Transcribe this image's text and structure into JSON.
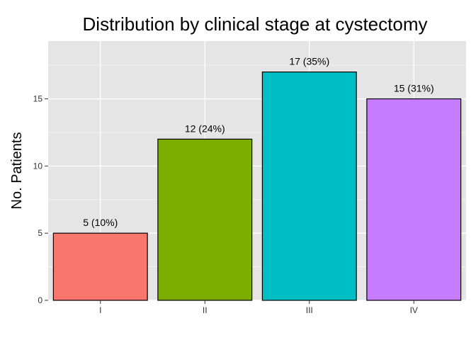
{
  "chart_data": {
    "type": "bar",
    "title": "Distribution by clinical stage at cystectomy",
    "xlabel": "",
    "ylabel": "No. Patients",
    "categories": [
      "I",
      "II",
      "III",
      "IV"
    ],
    "values": [
      5,
      12,
      17,
      15
    ],
    "data_labels": [
      "5 (10%)",
      "12 (24%)",
      "17 (35%)",
      "15 (31%)"
    ],
    "colors": [
      "#F8766D",
      "#7CAE00",
      "#00BFC4",
      "#C77CFF"
    ],
    "ylim": [
      0,
      19.3
    ],
    "yticks": [
      0,
      5,
      10,
      15
    ],
    "grid": true,
    "legend": "none",
    "panel_background": "#E5E5E5",
    "gridline_color": "#FFFFFF"
  }
}
